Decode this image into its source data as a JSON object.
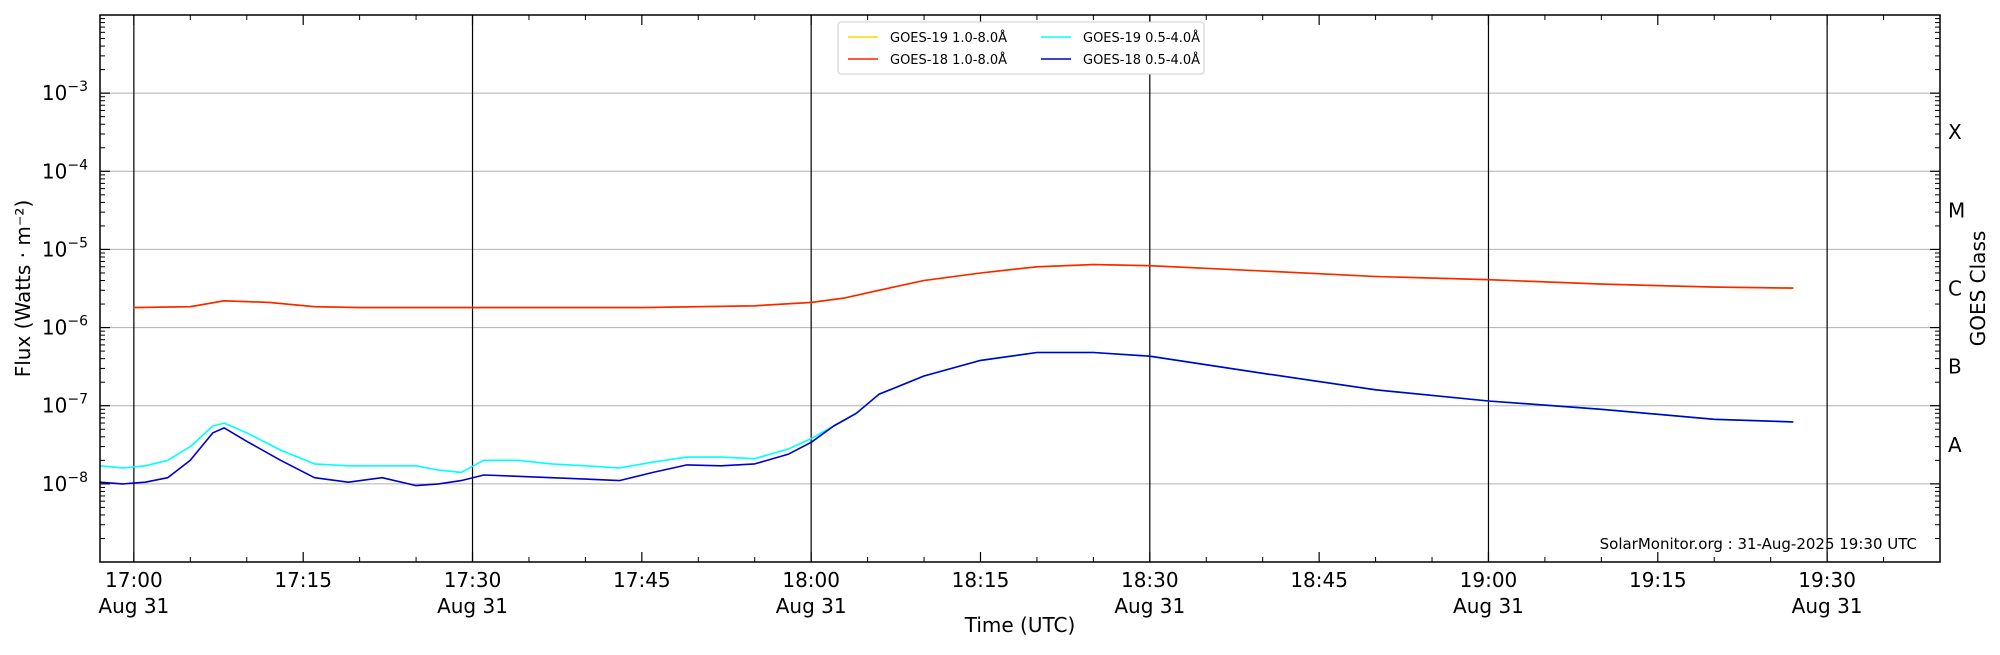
{
  "chart_data": {
    "type": "line",
    "title": "",
    "xlabel": "Time (UTC)",
    "ylabel": "Flux (Watts · m⁻²)",
    "ylabel_right": "GOES Class",
    "y_scale": "log",
    "ylim": [
      1e-09,
      0.01
    ],
    "xlim": [
      "2025-08-31 16:57",
      "2025-08-31 19:40"
    ],
    "grid": "horizontal at decades",
    "vertical_markers": [
      "17:00",
      "17:30",
      "18:00",
      "18:30",
      "19:00",
      "19:30"
    ],
    "x_ticks": [
      {
        "t": "17:00",
        "label": "17:00",
        "sub": "Aug 31"
      },
      {
        "t": "17:15",
        "label": "17:15",
        "sub": ""
      },
      {
        "t": "17:30",
        "label": "17:30",
        "sub": "Aug 31"
      },
      {
        "t": "17:45",
        "label": "17:45",
        "sub": ""
      },
      {
        "t": "18:00",
        "label": "18:00",
        "sub": "Aug 31"
      },
      {
        "t": "18:15",
        "label": "18:15",
        "sub": ""
      },
      {
        "t": "18:30",
        "label": "18:30",
        "sub": "Aug 31"
      },
      {
        "t": "18:45",
        "label": "18:45",
        "sub": ""
      },
      {
        "t": "19:00",
        "label": "19:00",
        "sub": "Aug 31"
      },
      {
        "t": "19:15",
        "label": "19:15",
        "sub": ""
      },
      {
        "t": "19:30",
        "label": "19:30",
        "sub": "Aug 31"
      }
    ],
    "y_ticks": [
      {
        "exp": -8,
        "base": "10",
        "sup": "−8"
      },
      {
        "exp": -7,
        "base": "10",
        "sup": "−7"
      },
      {
        "exp": -6,
        "base": "10",
        "sup": "−6"
      },
      {
        "exp": -5,
        "base": "10",
        "sup": "−5"
      },
      {
        "exp": -4,
        "base": "10",
        "sup": "−4"
      },
      {
        "exp": -3,
        "base": "10",
        "sup": "−3"
      }
    ],
    "goes_classes": [
      {
        "label": "A",
        "flux": 3.16e-08
      },
      {
        "label": "B",
        "flux": 3.16e-07
      },
      {
        "label": "C",
        "flux": 3.16e-06
      },
      {
        "label": "M",
        "flux": 3.16e-05
      },
      {
        "label": "X",
        "flux": 0.000316
      }
    ],
    "legend_position": "top-center",
    "legend": [
      {
        "name": "GOES-19 1.0-8.0Å",
        "color": "#ffd700"
      },
      {
        "name": "GOES-19 0.5-4.0Å",
        "color": "#00ffff"
      },
      {
        "name": "GOES-18 1.0-8.0Å",
        "color": "#ff2200"
      },
      {
        "name": "GOES-18 0.5-4.0Å",
        "color": "#0000cc"
      }
    ],
    "series": [
      {
        "name": "GOES-19 1.0-8.0Å",
        "color": "#ffd700",
        "x": [
          "17:00",
          "17:05",
          "17:08",
          "17:12",
          "17:16",
          "17:20",
          "17:30",
          "17:45",
          "17:55",
          "18:00",
          "18:03",
          "18:06",
          "18:10",
          "18:15",
          "18:20",
          "18:25",
          "18:30",
          "18:40",
          "18:50",
          "19:00",
          "19:10",
          "19:20",
          "19:27"
        ],
        "values": [
          1.8e-06,
          1.85e-06,
          2.2e-06,
          2.1e-06,
          1.85e-06,
          1.8e-06,
          1.8e-06,
          1.8e-06,
          1.9e-06,
          2.1e-06,
          2.4e-06,
          3e-06,
          4e-06,
          5e-06,
          6e-06,
          6.4e-06,
          6.2e-06,
          5.3e-06,
          4.5e-06,
          4.1e-06,
          3.6e-06,
          3.3e-06,
          3.2e-06
        ]
      },
      {
        "name": "GOES-18 1.0-8.0Å",
        "color": "#ff2200",
        "x": [
          "17:00",
          "17:05",
          "17:08",
          "17:12",
          "17:16",
          "17:20",
          "17:30",
          "17:45",
          "17:55",
          "18:00",
          "18:03",
          "18:06",
          "18:10",
          "18:15",
          "18:20",
          "18:25",
          "18:30",
          "18:40",
          "18:50",
          "19:00",
          "19:10",
          "19:20",
          "19:27"
        ],
        "values": [
          1.8e-06,
          1.85e-06,
          2.2e-06,
          2.1e-06,
          1.85e-06,
          1.8e-06,
          1.8e-06,
          1.8e-06,
          1.9e-06,
          2.1e-06,
          2.4e-06,
          3e-06,
          4e-06,
          5e-06,
          6e-06,
          6.4e-06,
          6.2e-06,
          5.3e-06,
          4.5e-06,
          4.1e-06,
          3.6e-06,
          3.3e-06,
          3.2e-06
        ]
      },
      {
        "name": "GOES-19 0.5-4.0Å",
        "color": "#00ffff",
        "x": [
          "16:57",
          "16:59",
          "17:01",
          "17:03",
          "17:05",
          "17:07",
          "17:08",
          "17:10",
          "17:13",
          "17:16",
          "17:19",
          "17:22",
          "17:25",
          "17:27",
          "17:29",
          "17:31",
          "17:34",
          "17:37",
          "17:40",
          "17:43",
          "17:46",
          "17:49",
          "17:52",
          "17:55",
          "17:58",
          "18:00",
          "18:02",
          "18:04",
          "18:06",
          "18:10",
          "18:15",
          "18:20",
          "18:25",
          "18:30",
          "18:40",
          "18:50",
          "19:00",
          "19:10",
          "19:20",
          "19:27"
        ],
        "values": [
          1.7e-08,
          1.6e-08,
          1.7e-08,
          2e-08,
          3e-08,
          5.5e-08,
          6e-08,
          4.5e-08,
          2.7e-08,
          1.8e-08,
          1.7e-08,
          1.7e-08,
          1.7e-08,
          1.5e-08,
          1.4e-08,
          2e-08,
          2e-08,
          1.8e-08,
          1.7e-08,
          1.6e-08,
          1.9e-08,
          2.2e-08,
          2.2e-08,
          2.1e-08,
          2.8e-08,
          3.8e-08,
          5.5e-08,
          8e-08,
          1.4e-07,
          2.4e-07,
          3.8e-07,
          4.8e-07,
          4.8e-07,
          4.3e-07,
          2.6e-07,
          1.6e-07,
          1.15e-07,
          9e-08,
          6.7e-08,
          6.2e-08
        ]
      },
      {
        "name": "GOES-18 0.5-4.0Å",
        "color": "#0000cc",
        "x": [
          "16:57",
          "16:59",
          "17:01",
          "17:03",
          "17:05",
          "17:07",
          "17:08",
          "17:10",
          "17:13",
          "17:16",
          "17:19",
          "17:22",
          "17:25",
          "17:27",
          "17:29",
          "17:31",
          "17:34",
          "17:37",
          "17:40",
          "17:43",
          "17:46",
          "17:49",
          "17:52",
          "17:55",
          "17:58",
          "18:00",
          "18:02",
          "18:04",
          "18:06",
          "18:10",
          "18:15",
          "18:20",
          "18:25",
          "18:30",
          "18:40",
          "18:50",
          "19:00",
          "19:10",
          "19:20",
          "19:27"
        ],
        "values": [
          1.05e-08,
          1e-08,
          1.05e-08,
          1.2e-08,
          2e-08,
          4.5e-08,
          5.2e-08,
          3.5e-08,
          2e-08,
          1.2e-08,
          1.05e-08,
          1.2e-08,
          9.5e-09,
          1e-08,
          1.1e-08,
          1.3e-08,
          1.25e-08,
          1.2e-08,
          1.15e-08,
          1.1e-08,
          1.4e-08,
          1.75e-08,
          1.7e-08,
          1.8e-08,
          2.4e-08,
          3.4e-08,
          5.5e-08,
          8e-08,
          1.4e-07,
          2.4e-07,
          3.8e-07,
          4.8e-07,
          4.8e-07,
          4.3e-07,
          2.6e-07,
          1.6e-07,
          1.15e-07,
          9e-08,
          6.7e-08,
          6.2e-08
        ]
      }
    ],
    "annotation": "SolarMonitor.org : 31-Aug-2025 19:30 UTC"
  }
}
